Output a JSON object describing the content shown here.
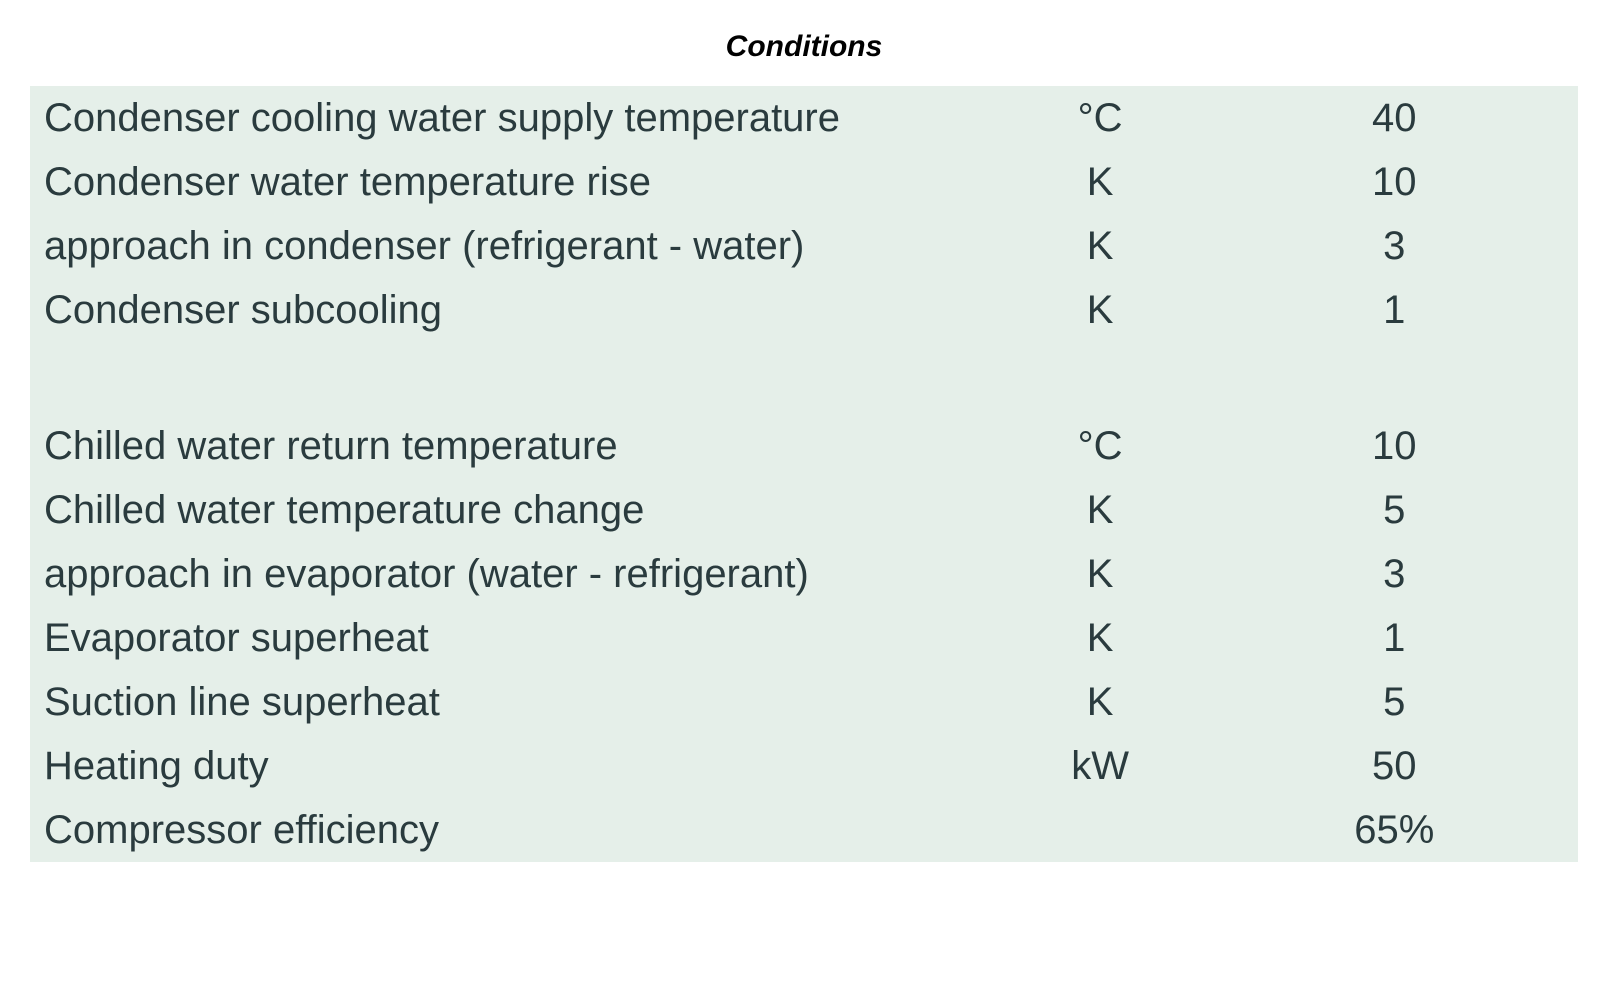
{
  "title": "Conditions",
  "conditions": {
    "background_color": "#e5efe9",
    "text_color": "#2a3b3e",
    "title_color": "#000000",
    "label_fontsize": 40,
    "title_fontsize": 30,
    "rows": [
      {
        "label": "Condenser cooling water supply temperature",
        "unit": "°C",
        "value": "40"
      },
      {
        "label": "Condenser water temperature rise",
        "unit": "K",
        "value": "10"
      },
      {
        "label": "approach in condenser (refrigerant - water)",
        "unit": "K",
        "value": "3"
      },
      {
        "label": "Condenser subcooling",
        "unit": "K",
        "value": "1"
      },
      {
        "spacer": true
      },
      {
        "label": "Chilled water return temperature",
        "unit": "°C",
        "value": "10"
      },
      {
        "label": "Chilled water temperature change",
        "unit": "K",
        "value": "5"
      },
      {
        "label": "approach in evaporator (water - refrigerant)",
        "unit": "K",
        "value": "3"
      },
      {
        "label": "Evaporator superheat",
        "unit": "K",
        "value": "1"
      },
      {
        "label": "Suction line superheat",
        "unit": "K",
        "value": "5"
      },
      {
        "label": "Heating duty",
        "unit": "kW",
        "value": "50"
      },
      {
        "label": "Compressor efficiency",
        "unit": "",
        "value": "65%"
      }
    ]
  }
}
